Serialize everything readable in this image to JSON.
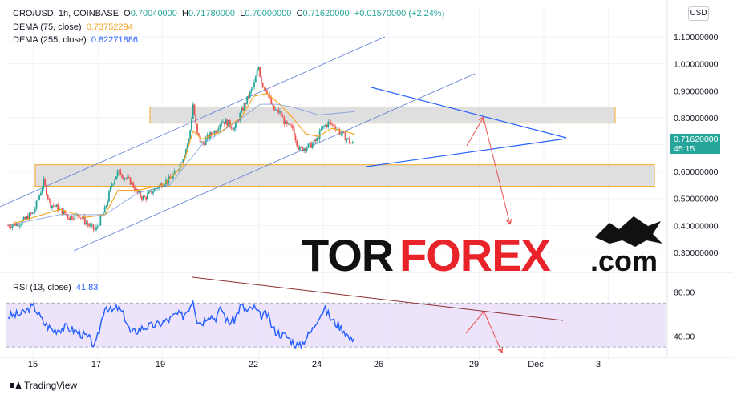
{
  "header": {
    "symbol": "CRO/USD, 1h, COINBASE",
    "o_label": "O",
    "o": "0.70040000",
    "h_label": "H",
    "h": "0.71780000",
    "l_label": "L",
    "l": "0.70000000",
    "c_label": "C",
    "c": "0.71620000",
    "change": "+0.01570000 (+2.24%)",
    "dema1_label": "DEMA (75, close)",
    "dema1": "0.73752294",
    "dema2_label": "DEMA (255, close)",
    "dema2": "0.82271886",
    "currency": "USD"
  },
  "price_tag": {
    "price": "0.71620000",
    "countdown": "45:15"
  },
  "rsi_legend": {
    "label": "RSI (13, close)",
    "value": "41.83"
  },
  "footer": {
    "brand": "TradingView"
  },
  "watermark": {
    "part1": "TOR",
    "part2": "FOREX",
    "part3": ".com"
  },
  "colors": {
    "up": "#26a69a",
    "down": "#ef5350",
    "dema": "#f5a623",
    "channel": "#2962ff",
    "rsi": "#2962ff",
    "rsi_band": "#e9ddfb",
    "zone_border": "#f5a623",
    "zone_fill": "#d9d9d9",
    "arrow": "#ef5350",
    "rsi_trend": "#8b2e2e"
  },
  "chart_data": {
    "type": "candlestick",
    "x_ticks": [
      "15",
      "17",
      "19",
      "22",
      "24",
      "26",
      "29",
      "Dec",
      "3"
    ],
    "price_ticks": [
      "1.10000000",
      "1.00000000",
      "0.90000000",
      "0.80000000",
      "0.70000000",
      "0.60000000",
      "0.50000000",
      "0.40000000",
      "0.30000000"
    ],
    "price_range": [
      0.27,
      1.13
    ],
    "rsi_ticks": [
      "80.00",
      "40.00"
    ],
    "rsi_range": [
      25,
      95
    ],
    "rsi_band": [
      30,
      70
    ],
    "close_path": [
      [
        0,
        0.4
      ],
      [
        2,
        0.41
      ],
      [
        4,
        0.45
      ],
      [
        5.5,
        0.56
      ],
      [
        6.5,
        0.48
      ],
      [
        8,
        0.46
      ],
      [
        9.5,
        0.43
      ],
      [
        11,
        0.44
      ],
      [
        12.5,
        0.4
      ],
      [
        13.5,
        0.38
      ],
      [
        15,
        0.46
      ],
      [
        16,
        0.55
      ],
      [
        17,
        0.6
      ],
      [
        18,
        0.58
      ],
      [
        19,
        0.56
      ],
      [
        20,
        0.52
      ],
      [
        21,
        0.5
      ],
      [
        22,
        0.52
      ],
      [
        23,
        0.54
      ],
      [
        24,
        0.56
      ],
      [
        25,
        0.57
      ],
      [
        26,
        0.6
      ],
      [
        27,
        0.65
      ],
      [
        28,
        0.72
      ],
      [
        28.6,
        0.85
      ],
      [
        29.2,
        0.74
      ],
      [
        30,
        0.7
      ],
      [
        31,
        0.73
      ],
      [
        32,
        0.75
      ],
      [
        33,
        0.79
      ],
      [
        34,
        0.78
      ],
      [
        35,
        0.76
      ],
      [
        36,
        0.82
      ],
      [
        37,
        0.87
      ],
      [
        38,
        0.92
      ],
      [
        38.7,
        0.99
      ],
      [
        39.2,
        0.93
      ],
      [
        40,
        0.9
      ],
      [
        41,
        0.83
      ],
      [
        42,
        0.82
      ],
      [
        43,
        0.77
      ],
      [
        44,
        0.76
      ],
      [
        45,
        0.68
      ],
      [
        46,
        0.69
      ],
      [
        47,
        0.7
      ],
      [
        47.8,
        0.72
      ],
      [
        48.5,
        0.76
      ],
      [
        49.5,
        0.78
      ],
      [
        50.5,
        0.77
      ],
      [
        51.5,
        0.74
      ],
      [
        52.5,
        0.72
      ],
      [
        53.2,
        0.7
      ],
      [
        53.6,
        0.716
      ]
    ],
    "dema75_path": [
      [
        0,
        0.4
      ],
      [
        4,
        0.43
      ],
      [
        8,
        0.46
      ],
      [
        12,
        0.43
      ],
      [
        15,
        0.44
      ],
      [
        17,
        0.53
      ],
      [
        20,
        0.53
      ],
      [
        24,
        0.55
      ],
      [
        27,
        0.62
      ],
      [
        28.6,
        0.75
      ],
      [
        30,
        0.72
      ],
      [
        33,
        0.75
      ],
      [
        36,
        0.8
      ],
      [
        38,
        0.88
      ],
      [
        40,
        0.89
      ],
      [
        42,
        0.85
      ],
      [
        44,
        0.8
      ],
      [
        46,
        0.74
      ],
      [
        48,
        0.73
      ],
      [
        50,
        0.76
      ],
      [
        52,
        0.75
      ],
      [
        53.6,
        0.738
      ]
    ],
    "dema255_path": [
      [
        0,
        0.4
      ],
      [
        8,
        0.44
      ],
      [
        15,
        0.44
      ],
      [
        20,
        0.52
      ],
      [
        25,
        0.55
      ],
      [
        30,
        0.7
      ],
      [
        35,
        0.78
      ],
      [
        39,
        0.85
      ],
      [
        41.5,
        0.85
      ],
      [
        44,
        0.84
      ],
      [
        48,
        0.81
      ],
      [
        53.6,
        0.823
      ]
    ],
    "rsi_path": [
      [
        0,
        58
      ],
      [
        2,
        60
      ],
      [
        4,
        67
      ],
      [
        5.5,
        52
      ],
      [
        7,
        45
      ],
      [
        9,
        48
      ],
      [
        11,
        43
      ],
      [
        12.5,
        38
      ],
      [
        13.5,
        30
      ],
      [
        15,
        68
      ],
      [
        16,
        62
      ],
      [
        17,
        66
      ],
      [
        18,
        58
      ],
      [
        19,
        42
      ],
      [
        21,
        48
      ],
      [
        23,
        50
      ],
      [
        25,
        55
      ],
      [
        26,
        60
      ],
      [
        27,
        58
      ],
      [
        28,
        66
      ],
      [
        28.6,
        74
      ],
      [
        29.2,
        55
      ],
      [
        30,
        52
      ],
      [
        31,
        60
      ],
      [
        32,
        56
      ],
      [
        33,
        65
      ],
      [
        34,
        52
      ],
      [
        35,
        55
      ],
      [
        36,
        68
      ],
      [
        37,
        62
      ],
      [
        38,
        66
      ],
      [
        39,
        58
      ],
      [
        40,
        60
      ],
      [
        41,
        46
      ],
      [
        42,
        42
      ],
      [
        43,
        40
      ],
      [
        44,
        35
      ],
      [
        45,
        30
      ],
      [
        46,
        38
      ],
      [
        47,
        45
      ],
      [
        48,
        58
      ],
      [
        49,
        65
      ],
      [
        50,
        55
      ],
      [
        51,
        50
      ],
      [
        52,
        45
      ],
      [
        53,
        36
      ],
      [
        53.6,
        42
      ]
    ],
    "resistance_zone": [
      0.78,
      0.84
    ],
    "support_zone": [
      0.545,
      0.625
    ],
    "current_price": 0.7162,
    "current_rsi": 41.83
  }
}
